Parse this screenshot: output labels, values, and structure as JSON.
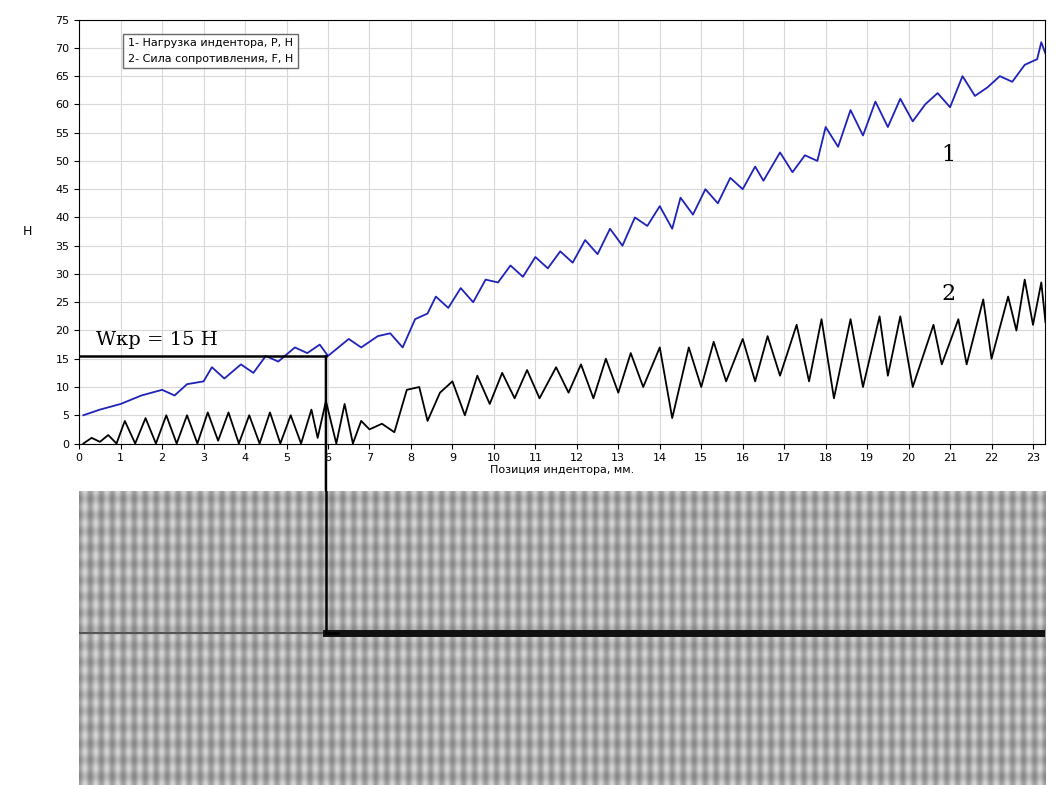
{
  "chart_data": {
    "type": "line",
    "xlabel": "Позиция индентора, мм.",
    "ylabel": "Н",
    "xlim": [
      0,
      23.3
    ],
    "ylim": [
      0,
      75
    ],
    "xticks": [
      0,
      1,
      2,
      3,
      4,
      5,
      6,
      7,
      8,
      9,
      10,
      11,
      12,
      13,
      14,
      15,
      16,
      17,
      18,
      19,
      20,
      21,
      22,
      23
    ],
    "yticks": [
      0,
      5,
      10,
      15,
      20,
      25,
      30,
      35,
      40,
      45,
      50,
      55,
      60,
      65,
      70,
      75
    ],
    "grid": true,
    "legend": "upper left",
    "annotations": [
      {
        "text": "1",
        "x": 20.8,
        "y": 51
      },
      {
        "text": "2",
        "x": 20.8,
        "y": 26.5
      }
    ],
    "threshold": {
      "label": "Wкр = 15 Н",
      "x": 5.95,
      "y": 15.5
    },
    "series": [
      {
        "name": "1- Нагрузка индентора, P, Н",
        "color": "#1f22b8",
        "line_style": "solid",
        "x": [
          0.1,
          0.5,
          1.0,
          1.5,
          2.0,
          2.3,
          2.6,
          3.0,
          3.2,
          3.5,
          3.9,
          4.2,
          4.5,
          4.8,
          5.2,
          5.5,
          5.8,
          6.0,
          6.5,
          6.8,
          7.2,
          7.5,
          7.8,
          8.1,
          8.4,
          8.6,
          8.9,
          9.2,
          9.5,
          9.8,
          10.1,
          10.4,
          10.7,
          11.0,
          11.3,
          11.6,
          11.9,
          12.2,
          12.5,
          12.8,
          13.1,
          13.4,
          13.7,
          14.0,
          14.3,
          14.5,
          14.8,
          15.1,
          15.4,
          15.7,
          16.0,
          16.3,
          16.5,
          16.9,
          17.2,
          17.5,
          17.8,
          18.0,
          18.3,
          18.6,
          18.9,
          19.2,
          19.5,
          19.8,
          20.1,
          20.4,
          20.7,
          21.0,
          21.3,
          21.6,
          21.9,
          22.2,
          22.5,
          22.8,
          23.1,
          23.2,
          23.3
        ],
        "values": [
          5,
          6,
          7,
          8.5,
          9.5,
          8.5,
          10.5,
          11,
          13.5,
          11.5,
          14,
          12.5,
          15.5,
          14.5,
          17,
          16,
          17.5,
          15.5,
          18.5,
          17,
          19,
          19.5,
          17,
          22,
          23,
          26,
          24,
          27.5,
          25,
          29,
          28.5,
          31.5,
          29.5,
          33,
          31,
          34,
          32,
          36,
          33.5,
          38,
          35,
          40,
          38.5,
          42,
          38,
          43.5,
          40.5,
          45,
          42.5,
          47,
          45,
          49,
          46.5,
          51.5,
          48,
          51,
          50,
          56,
          52.5,
          59,
          54.5,
          60.5,
          56,
          61,
          57,
          60,
          62,
          59.5,
          65,
          61.5,
          63,
          65,
          64,
          67,
          68,
          71,
          69
        ]
      },
      {
        "name": "2- Сила сопротивления, F, Н",
        "color": "#000000",
        "line_style": "solid",
        "x": [
          0.1,
          0.3,
          0.5,
          0.7,
          0.9,
          1.1,
          1.35,
          1.6,
          1.85,
          2.1,
          2.35,
          2.6,
          2.85,
          3.1,
          3.35,
          3.6,
          3.85,
          4.1,
          4.35,
          4.6,
          4.85,
          5.1,
          5.35,
          5.6,
          5.75,
          5.95,
          6.2,
          6.4,
          6.6,
          6.8,
          7.0,
          7.3,
          7.6,
          7.9,
          8.2,
          8.4,
          8.7,
          9.0,
          9.3,
          9.6,
          9.9,
          10.2,
          10.5,
          10.8,
          11.1,
          11.5,
          11.8,
          12.1,
          12.4,
          12.7,
          13.0,
          13.3,
          13.6,
          14.0,
          14.3,
          14.7,
          15.0,
          15.3,
          15.6,
          16.0,
          16.3,
          16.6,
          16.9,
          17.3,
          17.6,
          17.9,
          18.2,
          18.6,
          18.9,
          19.3,
          19.5,
          19.8,
          20.1,
          20.6,
          20.8,
          21.2,
          21.4,
          21.8,
          22.0,
          22.4,
          22.6,
          22.8,
          23.0,
          23.2,
          23.3
        ],
        "values": [
          0,
          1,
          0.3,
          1.5,
          0,
          4,
          0,
          4.5,
          0,
          5,
          0,
          5,
          0,
          5.5,
          0.5,
          5.5,
          0,
          5,
          0,
          5.5,
          0,
          5,
          0,
          6,
          1,
          7.5,
          0,
          7,
          0,
          4,
          2.5,
          3.5,
          2,
          9.5,
          10,
          4,
          9,
          11,
          5,
          12,
          7,
          12.5,
          8,
          13,
          8,
          13.5,
          9,
          14,
          8,
          15,
          9,
          16,
          10,
          17,
          4.5,
          17,
          10,
          18,
          11,
          18.5,
          11,
          19,
          12,
          21,
          11,
          22,
          8,
          22,
          10,
          22.5,
          12,
          22.5,
          10,
          21,
          14,
          22,
          14,
          25.5,
          15,
          26,
          20,
          29,
          21,
          28.5,
          21.5
        ]
      }
    ]
  }
}
